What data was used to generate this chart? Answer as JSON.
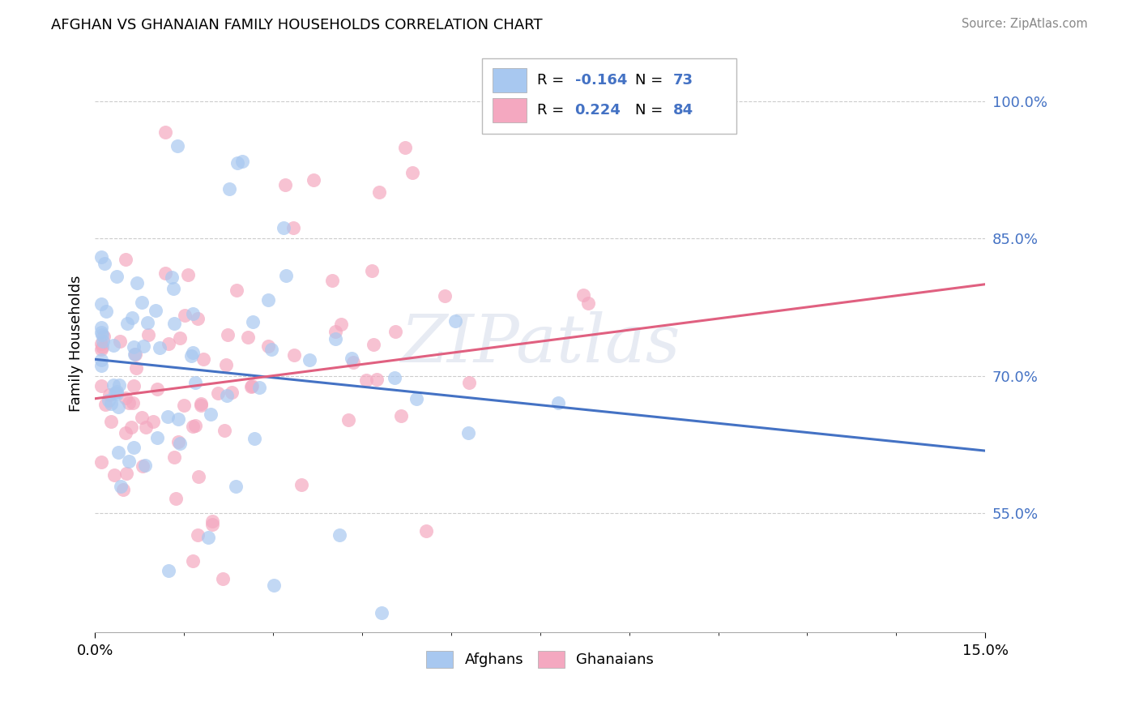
{
  "title": "AFGHAN VS GHANAIAN FAMILY HOUSEHOLDS CORRELATION CHART",
  "source": "Source: ZipAtlas.com",
  "ylabel": "Family Households",
  "yticks": [
    "55.0%",
    "70.0%",
    "85.0%",
    "100.0%"
  ],
  "ytick_vals": [
    0.55,
    0.7,
    0.85,
    1.0
  ],
  "xlim": [
    0.0,
    0.15
  ],
  "ylim": [
    0.42,
    1.05
  ],
  "legend1_R": -0.164,
  "legend1_N": 73,
  "legend2_R": 0.224,
  "legend2_N": 84,
  "blue_color": "#A8C8F0",
  "pink_color": "#F4A8C0",
  "blue_line_color": "#4472C4",
  "pink_line_color": "#E06080",
  "watermark": "ZIPatlas",
  "background_color": "#ffffff",
  "legend_label_afghans": "Afghans",
  "legend_label_ghanaians": "Ghanaians",
  "blue_line_y0": 0.718,
  "blue_line_y1": 0.618,
  "pink_line_y0": 0.675,
  "pink_line_y1": 0.8
}
